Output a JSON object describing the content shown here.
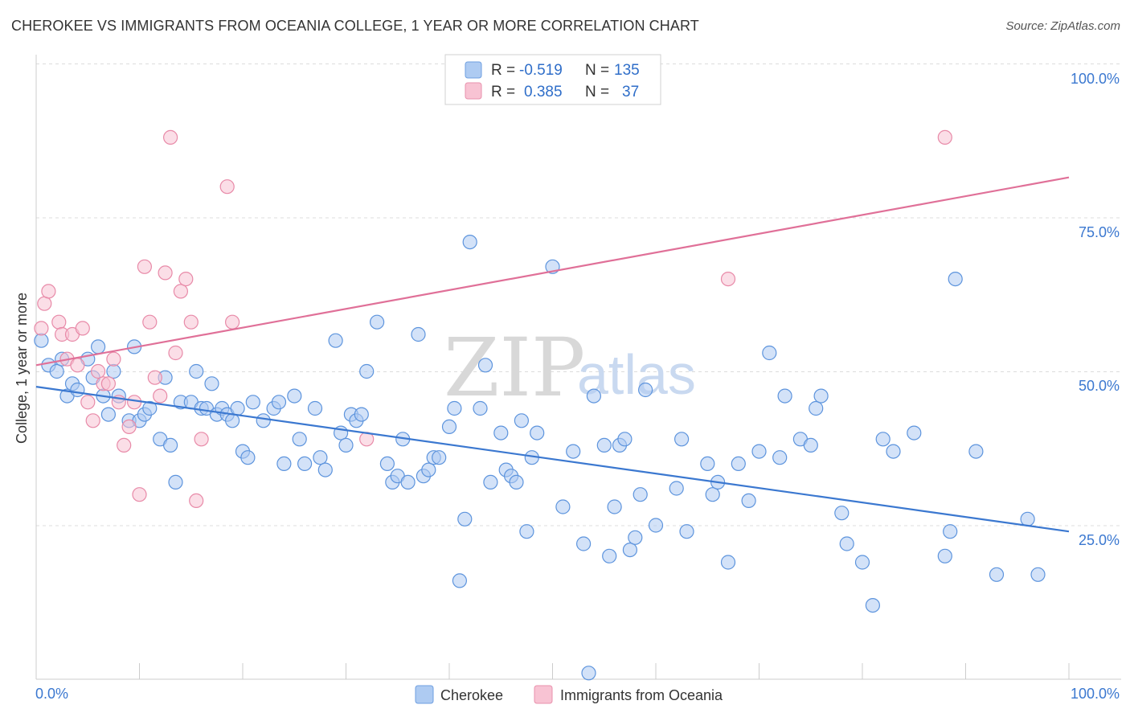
{
  "header": {
    "title": "CHEROKEE VS IMMIGRANTS FROM OCEANIA COLLEGE, 1 YEAR OR MORE CORRELATION CHART",
    "source": "Source: ZipAtlas.com"
  },
  "watermark": {
    "zip": "ZIP",
    "atlas": "atlas"
  },
  "legend": {
    "r_label": "R =",
    "n_label": "N =",
    "entries": [
      {
        "r": "-0.519",
        "n": "135",
        "color": "#aecbf2",
        "stroke": "#6f9fe0"
      },
      {
        "r": "0.385",
        "n": "37",
        "color": "#f8c3d3",
        "stroke": "#e890ac"
      }
    ]
  },
  "bottom_legend": {
    "items": [
      {
        "label": "Cherokee"
      },
      {
        "label": "Immigrants from Oceania"
      }
    ]
  },
  "chart_data": {
    "type": "scatter",
    "ylabel": "College, 1 year or more",
    "xlabel": "",
    "x_tick_labels": [
      "0.0%",
      "100.0%"
    ],
    "y_tick_labels": [
      "100.0%",
      "75.0%",
      "50.0%",
      "25.0%"
    ],
    "xlim": [
      0,
      100
    ],
    "ylim": [
      0,
      100
    ],
    "grid": true,
    "colors": {
      "cherokee": "#3b78d0",
      "oceania": "#e07098",
      "tick": "#3b78d0"
    },
    "series": [
      {
        "name": "Cherokee",
        "trend": [
          [
            0,
            47.5
          ],
          [
            100,
            24.0
          ]
        ],
        "points": [
          [
            0.5,
            55
          ],
          [
            1.2,
            51
          ],
          [
            2,
            50
          ],
          [
            2.5,
            52
          ],
          [
            3,
            46
          ],
          [
            3.5,
            48
          ],
          [
            4,
            47
          ],
          [
            5,
            52
          ],
          [
            5.5,
            49
          ],
          [
            6,
            54
          ],
          [
            6.5,
            46
          ],
          [
            7,
            43
          ],
          [
            7.5,
            50
          ],
          [
            8,
            46
          ],
          [
            9,
            42
          ],
          [
            9.5,
            54
          ],
          [
            10,
            42
          ],
          [
            10.5,
            43
          ],
          [
            11,
            44
          ],
          [
            12,
            39
          ],
          [
            12.5,
            49
          ],
          [
            13,
            38
          ],
          [
            13.5,
            32
          ],
          [
            14,
            45
          ],
          [
            15,
            45
          ],
          [
            15.5,
            50
          ],
          [
            16,
            44
          ],
          [
            16.5,
            44
          ],
          [
            17,
            48
          ],
          [
            17.5,
            43
          ],
          [
            18,
            44
          ],
          [
            18.5,
            43
          ],
          [
            19,
            42
          ],
          [
            19.5,
            44
          ],
          [
            20,
            37
          ],
          [
            20.5,
            36
          ],
          [
            21,
            45
          ],
          [
            22,
            42
          ],
          [
            23,
            44
          ],
          [
            23.5,
            45
          ],
          [
            24,
            35
          ],
          [
            25,
            46
          ],
          [
            25.5,
            39
          ],
          [
            26,
            35
          ],
          [
            27,
            44
          ],
          [
            27.5,
            36
          ],
          [
            28,
            34
          ],
          [
            29,
            55
          ],
          [
            29.5,
            40
          ],
          [
            30,
            38
          ],
          [
            30.5,
            43
          ],
          [
            31,
            42
          ],
          [
            31.5,
            43
          ],
          [
            32,
            50
          ],
          [
            33,
            58
          ],
          [
            34,
            35
          ],
          [
            34.5,
            32
          ],
          [
            35,
            33
          ],
          [
            35.5,
            39
          ],
          [
            36,
            32
          ],
          [
            37,
            56
          ],
          [
            37.5,
            33
          ],
          [
            38,
            34
          ],
          [
            38.5,
            36
          ],
          [
            39,
            36
          ],
          [
            40,
            41
          ],
          [
            40.5,
            44
          ],
          [
            41,
            16
          ],
          [
            41.5,
            26
          ],
          [
            42,
            71
          ],
          [
            43,
            44
          ],
          [
            43.5,
            51
          ],
          [
            44,
            32
          ],
          [
            45,
            40
          ],
          [
            45.5,
            34
          ],
          [
            46,
            33
          ],
          [
            46.5,
            32
          ],
          [
            47,
            42
          ],
          [
            47.5,
            24
          ],
          [
            48,
            36
          ],
          [
            48.5,
            40
          ],
          [
            50,
            67
          ],
          [
            51,
            28
          ],
          [
            52,
            37
          ],
          [
            53,
            22
          ],
          [
            54,
            46
          ],
          [
            55,
            38
          ],
          [
            55.5,
            20
          ],
          [
            56,
            28
          ],
          [
            56.5,
            38
          ],
          [
            57,
            39
          ],
          [
            57.5,
            21
          ],
          [
            58,
            23
          ],
          [
            58.5,
            30
          ],
          [
            59,
            47
          ],
          [
            60,
            25
          ],
          [
            62,
            31
          ],
          [
            62.5,
            39
          ],
          [
            63,
            24
          ],
          [
            65,
            35
          ],
          [
            65.5,
            30
          ],
          [
            66,
            32
          ],
          [
            67,
            19
          ],
          [
            68,
            35
          ],
          [
            69,
            29
          ],
          [
            70,
            37
          ],
          [
            71,
            53
          ],
          [
            72,
            36
          ],
          [
            72.5,
            46
          ],
          [
            74,
            39
          ],
          [
            75,
            38
          ],
          [
            75.5,
            44
          ],
          [
            76,
            46
          ],
          [
            78,
            27
          ],
          [
            78.5,
            22
          ],
          [
            80,
            19
          ],
          [
            81,
            12
          ],
          [
            82,
            39
          ],
          [
            83,
            37
          ],
          [
            85,
            40
          ],
          [
            88,
            20
          ],
          [
            88.5,
            24
          ],
          [
            89,
            65
          ],
          [
            91,
            37
          ],
          [
            96,
            26
          ],
          [
            93,
            17
          ],
          [
            97,
            17
          ],
          [
            53.5,
            1
          ]
        ]
      },
      {
        "name": "Immigrants from Oceania",
        "trend": [
          [
            0,
            51.0
          ],
          [
            100,
            81.5
          ]
        ],
        "points": [
          [
            0.5,
            57
          ],
          [
            0.8,
            61
          ],
          [
            1.2,
            63
          ],
          [
            2.2,
            58
          ],
          [
            2.5,
            56
          ],
          [
            3,
            52
          ],
          [
            3.5,
            56
          ],
          [
            4,
            51
          ],
          [
            4.5,
            57
          ],
          [
            5,
            45
          ],
          [
            5.5,
            42
          ],
          [
            6,
            50
          ],
          [
            6.5,
            48
          ],
          [
            7,
            48
          ],
          [
            7.5,
            52
          ],
          [
            8,
            45
          ],
          [
            8.5,
            38
          ],
          [
            9,
            41
          ],
          [
            9.5,
            45
          ],
          [
            10,
            30
          ],
          [
            10.5,
            67
          ],
          [
            11,
            58
          ],
          [
            11.5,
            49
          ],
          [
            12,
            46
          ],
          [
            12.5,
            66
          ],
          [
            13,
            88
          ],
          [
            13.5,
            53
          ],
          [
            14,
            63
          ],
          [
            14.5,
            65
          ],
          [
            15,
            58
          ],
          [
            15.5,
            29
          ],
          [
            16,
            39
          ],
          [
            18.5,
            80
          ],
          [
            19,
            58
          ],
          [
            32,
            39
          ],
          [
            67,
            65
          ],
          [
            88,
            88
          ]
        ]
      }
    ]
  }
}
